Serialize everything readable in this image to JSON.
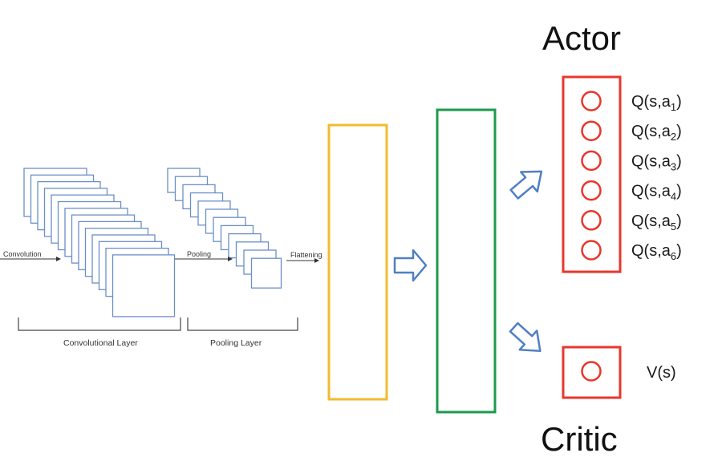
{
  "title_top": "Actor",
  "title_bottom": "Critic",
  "cnn": {
    "step_convolution": "Convolution",
    "step_pooling": "Pooling",
    "step_flattening": "Flattening",
    "convolutional_layer": "Convolutional Layer",
    "pooling_layer": "Pooling Layer",
    "conv_map_count": 14,
    "pool_map_count": 12
  },
  "actor_outputs": [
    {
      "base": "Q(s,a",
      "sub": "1",
      "close": ")"
    },
    {
      "base": "Q(s,a",
      "sub": "2",
      "close": ")"
    },
    {
      "base": "Q(s,a",
      "sub": "3",
      "close": ")"
    },
    {
      "base": "Q(s,a",
      "sub": "4",
      "close": ")"
    },
    {
      "base": "Q(s,a",
      "sub": "5",
      "close": ")"
    },
    {
      "base": "Q(s,a",
      "sub": "6",
      "close": ")"
    }
  ],
  "critic_output": "V(s)",
  "colors": {
    "feature_map": "#6b8fc9",
    "dense_layer_1": "#f2bb2e",
    "dense_layer_2": "#1c9a4c",
    "output_layer": "#e8372b",
    "arrow_outline": "#4f7fc4",
    "arrow_fill": "#ffffff"
  }
}
